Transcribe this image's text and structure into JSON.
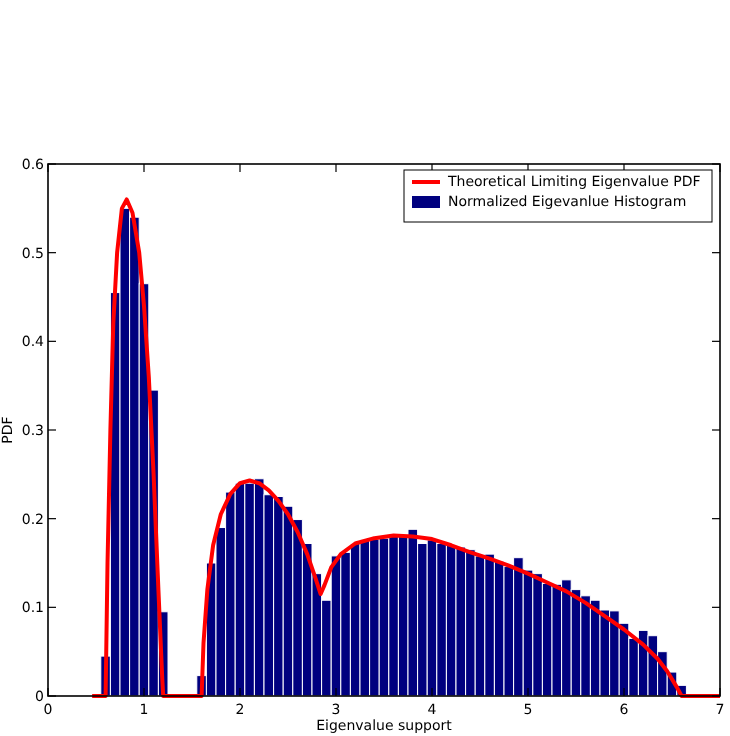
{
  "chart_data": {
    "type": "histogram",
    "xlabel": "Eigenvalue support",
    "ylabel": "PDF",
    "xlim": [
      0,
      7
    ],
    "xticks": [
      0,
      1,
      2,
      3,
      4,
      5,
      6,
      7
    ],
    "ylim": [
      0,
      0.6
    ],
    "yticks": [
      0,
      0.1,
      0.2,
      0.3,
      0.4,
      0.5,
      0.6
    ],
    "legend": "top right",
    "grid": false,
    "series": [
      {
        "name": "Theoretical Limiting Eigenvalue PDF",
        "type": "line",
        "color": "#ff0000",
        "x": [
          0.46,
          0.6,
          0.62,
          0.65,
          0.68,
          0.72,
          0.77,
          0.82,
          0.88,
          0.95,
          1.0,
          1.05,
          1.1,
          1.15,
          1.19,
          1.2,
          1.6,
          1.62,
          1.66,
          1.72,
          1.8,
          1.9,
          2.0,
          2.1,
          2.2,
          2.3,
          2.4,
          2.5,
          2.6,
          2.7,
          2.78,
          2.84,
          2.88,
          2.95,
          3.05,
          3.2,
          3.4,
          3.6,
          3.8,
          4.0,
          4.2,
          4.4,
          4.6,
          4.8,
          5.0,
          5.2,
          5.4,
          5.6,
          5.8,
          6.0,
          6.2,
          6.35,
          6.45,
          6.55,
          6.6,
          7.0
        ],
        "values": [
          0,
          0,
          0.15,
          0.3,
          0.42,
          0.5,
          0.55,
          0.56,
          0.545,
          0.5,
          0.44,
          0.36,
          0.25,
          0.12,
          0.02,
          0,
          0,
          0.06,
          0.12,
          0.17,
          0.205,
          0.228,
          0.24,
          0.243,
          0.24,
          0.232,
          0.22,
          0.205,
          0.185,
          0.16,
          0.135,
          0.115,
          0.125,
          0.145,
          0.16,
          0.172,
          0.178,
          0.181,
          0.18,
          0.177,
          0.17,
          0.162,
          0.155,
          0.147,
          0.138,
          0.128,
          0.118,
          0.105,
          0.09,
          0.075,
          0.058,
          0.042,
          0.028,
          0.01,
          0,
          0
        ]
      },
      {
        "name": "Normalized Eigevanlue Histogram",
        "color": "#00007f",
        "bins": [
          0.55,
          0.65,
          0.75,
          0.85,
          0.95,
          1.05,
          1.15,
          1.25,
          1.35,
          1.45,
          1.55,
          1.65,
          1.75,
          1.85,
          1.95,
          2.05,
          2.15,
          2.25,
          2.35,
          2.45,
          2.55,
          2.65,
          2.75,
          2.85,
          2.95,
          3.05,
          3.15,
          3.25,
          3.35,
          3.45,
          3.55,
          3.65,
          3.75,
          3.85,
          3.95,
          4.05,
          4.15,
          4.25,
          4.35,
          4.45,
          4.55,
          4.65,
          4.75,
          4.85,
          4.95,
          5.05,
          5.15,
          5.25,
          5.35,
          5.45,
          5.55,
          5.65,
          5.75,
          5.85,
          5.95,
          6.05,
          6.15,
          6.25,
          6.35,
          6.45,
          6.55,
          6.65
        ],
        "values": [
          0.045,
          0.455,
          0.55,
          0.54,
          0.465,
          0.345,
          0.095,
          0,
          0,
          0,
          0.023,
          0.15,
          0.19,
          0.23,
          0.24,
          0.24,
          0.245,
          0.227,
          0.225,
          0.214,
          0.199,
          0.172,
          0.138,
          0.108,
          0.158,
          0.162,
          0.172,
          0.176,
          0.177,
          0.178,
          0.18,
          0.18,
          0.188,
          0.172,
          0.176,
          0.172,
          0.17,
          0.168,
          0.165,
          0.158,
          0.16,
          0.152,
          0.146,
          0.156,
          0.142,
          0.138,
          0.127,
          0.126,
          0.131,
          0.12,
          0.113,
          0.108,
          0.097,
          0.096,
          0.082,
          0.065,
          0.074,
          0.068,
          0.05,
          0.027,
          0.012
        ]
      }
    ]
  }
}
